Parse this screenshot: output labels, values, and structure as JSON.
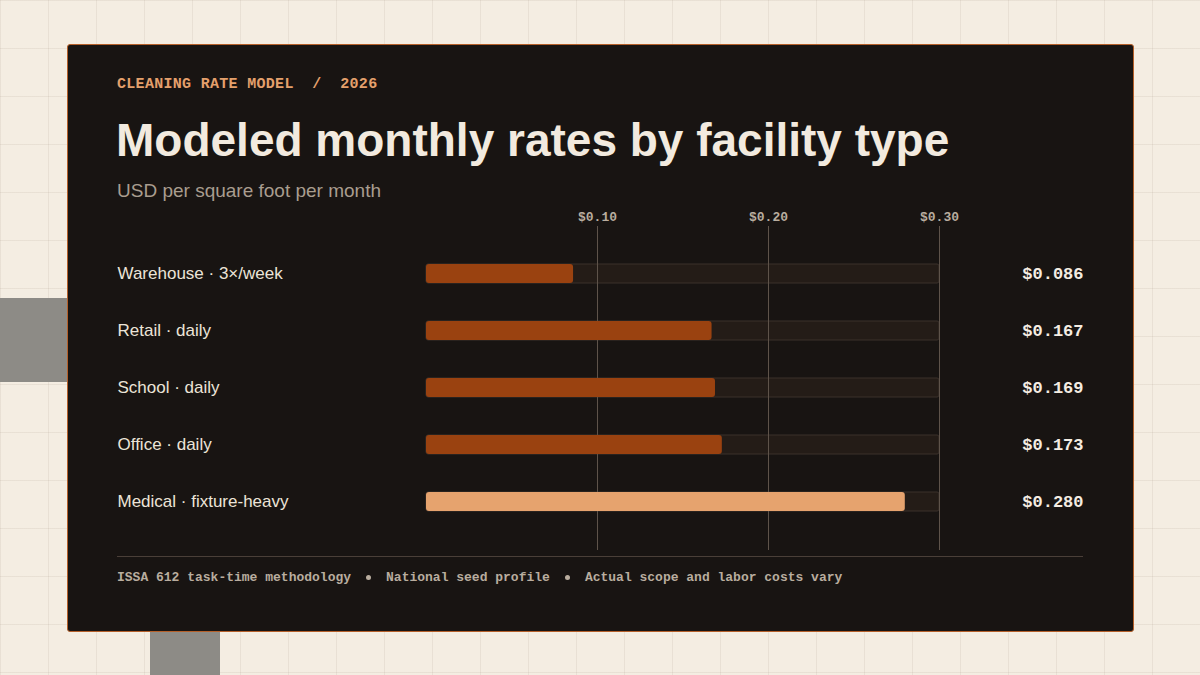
{
  "chart_data": {
    "type": "bar",
    "orientation": "horizontal",
    "kicker": "CLEANING RATE MODEL  /  2026",
    "title": "Modeled monthly rates by facility type",
    "subtitle": "USD per square foot per month",
    "categories": [
      "Warehouse · 3×/week",
      "Retail · daily",
      "School · daily",
      "Office · daily",
      "Medical · fixture-heavy"
    ],
    "values": [
      0.086,
      0.167,
      0.169,
      0.173,
      0.28
    ],
    "value_labels": [
      "$0.086",
      "$0.167",
      "$0.169",
      "$0.173",
      "$0.280"
    ],
    "data_labels": true,
    "colors": [
      "#9a4210",
      "#9a4210",
      "#9a4210",
      "#9a4210",
      "#e6a36e"
    ],
    "xlim": [
      0,
      0.3
    ],
    "xticks": [
      {
        "value": 0.1,
        "label": "$0.10"
      },
      {
        "value": 0.2,
        "label": "$0.20"
      },
      {
        "value": 0.3,
        "label": "$0.30"
      }
    ],
    "grid": true,
    "annotations": [
      "ISSA 612 task-time methodology",
      "National seed profile",
      "Actual scope and labor costs vary"
    ]
  }
}
